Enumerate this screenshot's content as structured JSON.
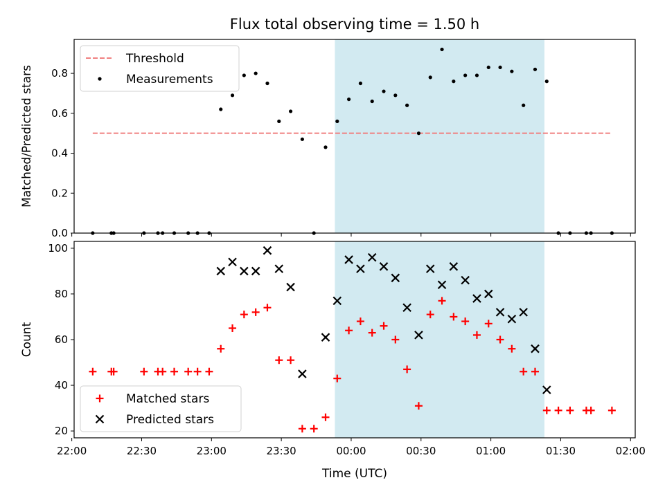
{
  "chart_data": {
    "title": "Flux total observing time = 1.50 h",
    "xlabel": "Time (UTC)",
    "x_ticks": [
      "22:00",
      "22:30",
      "23:00",
      "23:30",
      "00:00",
      "00:30",
      "01:00",
      "01:30",
      "02:00"
    ],
    "shaded_region": {
      "start": "23:53",
      "end": "01:23",
      "color": "#add8e6"
    },
    "panels": [
      {
        "type": "scatter",
        "ylabel": "Matched/Predicted stars",
        "ylim": [
          0,
          0.97
        ],
        "y_ticks": [
          "0.0",
          "0.2",
          "0.4",
          "0.6",
          "0.8"
        ],
        "legend_position": "upper-left",
        "threshold": {
          "name": "Threshold",
          "value": 0.5,
          "x_range": [
            "22:09",
            "01:52"
          ],
          "color": "#f08080"
        },
        "series": [
          {
            "name": "Measurements",
            "color": "#000000",
            "marker": "dot",
            "points": [
              [
                "22:09",
                0.0
              ],
              [
                "22:17",
                0.0
              ],
              [
                "22:18",
                0.0
              ],
              [
                "22:31",
                0.0
              ],
              [
                "22:37",
                0.0
              ],
              [
                "22:39",
                0.0
              ],
              [
                "22:44",
                0.0
              ],
              [
                "22:50",
                0.0
              ],
              [
                "22:54",
                0.0
              ],
              [
                "22:59",
                0.0
              ],
              [
                "23:04",
                0.62
              ],
              [
                "23:09",
                0.69
              ],
              [
                "23:14",
                0.79
              ],
              [
                "23:19",
                0.8
              ],
              [
                "23:24",
                0.75
              ],
              [
                "23:29",
                0.56
              ],
              [
                "23:34",
                0.61
              ],
              [
                "23:39",
                0.47
              ],
              [
                "23:44",
                0.0
              ],
              [
                "23:49",
                0.43
              ],
              [
                "23:54",
                0.56
              ],
              [
                "23:59",
                0.67
              ],
              [
                "00:04",
                0.75
              ],
              [
                "00:09",
                0.66
              ],
              [
                "00:14",
                0.71
              ],
              [
                "00:19",
                0.69
              ],
              [
                "00:24",
                0.64
              ],
              [
                "00:29",
                0.5
              ],
              [
                "00:34",
                0.78
              ],
              [
                "00:39",
                0.92
              ],
              [
                "00:44",
                0.76
              ],
              [
                "00:49",
                0.79
              ],
              [
                "00:54",
                0.79
              ],
              [
                "00:59",
                0.83
              ],
              [
                "01:04",
                0.83
              ],
              [
                "01:09",
                0.81
              ],
              [
                "01:14",
                0.64
              ],
              [
                "01:19",
                0.82
              ],
              [
                "01:24",
                0.76
              ],
              [
                "01:29",
                0.0
              ],
              [
                "01:34",
                0.0
              ],
              [
                "01:41",
                0.0
              ],
              [
                "01:43",
                0.0
              ],
              [
                "01:52",
                0.0
              ]
            ]
          }
        ]
      },
      {
        "type": "scatter",
        "ylabel": "Count",
        "ylim": [
          17,
          103
        ],
        "y_ticks": [
          "20",
          "40",
          "60",
          "80",
          "100"
        ],
        "legend_position": "lower-left",
        "series": [
          {
            "name": "Matched stars",
            "color": "#ff0000",
            "marker": "plus",
            "points": [
              [
                "22:09",
                46
              ],
              [
                "22:17",
                46
              ],
              [
                "22:18",
                46
              ],
              [
                "22:31",
                46
              ],
              [
                "22:37",
                46
              ],
              [
                "22:39",
                46
              ],
              [
                "22:44",
                46
              ],
              [
                "22:50",
                46
              ],
              [
                "22:54",
                46
              ],
              [
                "22:59",
                46
              ],
              [
                "23:04",
                56
              ],
              [
                "23:09",
                65
              ],
              [
                "23:14",
                71
              ],
              [
                "23:19",
                72
              ],
              [
                "23:24",
                74
              ],
              [
                "23:29",
                51
              ],
              [
                "23:34",
                51
              ],
              [
                "23:39",
                21
              ],
              [
                "23:44",
                21
              ],
              [
                "23:49",
                26
              ],
              [
                "23:54",
                43
              ],
              [
                "23:59",
                64
              ],
              [
                "00:04",
                68
              ],
              [
                "00:09",
                63
              ],
              [
                "00:14",
                66
              ],
              [
                "00:19",
                60
              ],
              [
                "00:24",
                47
              ],
              [
                "00:29",
                31
              ],
              [
                "00:34",
                71
              ],
              [
                "00:39",
                77
              ],
              [
                "00:44",
                70
              ],
              [
                "00:49",
                68
              ],
              [
                "00:54",
                62
              ],
              [
                "00:59",
                67
              ],
              [
                "01:04",
                60
              ],
              [
                "01:09",
                56
              ],
              [
                "01:14",
                46
              ],
              [
                "01:19",
                46
              ],
              [
                "01:24",
                29
              ],
              [
                "01:29",
                29
              ],
              [
                "01:34",
                29
              ],
              [
                "01:41",
                29
              ],
              [
                "01:43",
                29
              ],
              [
                "01:52",
                29
              ]
            ]
          },
          {
            "name": "Predicted stars",
            "color": "#000000",
            "marker": "x",
            "points": [
              [
                "23:04",
                90
              ],
              [
                "23:09",
                94
              ],
              [
                "23:14",
                90
              ],
              [
                "23:19",
                90
              ],
              [
                "23:24",
                99
              ],
              [
                "23:29",
                91
              ],
              [
                "23:34",
                83
              ],
              [
                "23:39",
                45
              ],
              [
                "23:49",
                61
              ],
              [
                "23:54",
                77
              ],
              [
                "23:59",
                95
              ],
              [
                "00:04",
                91
              ],
              [
                "00:09",
                96
              ],
              [
                "00:14",
                92
              ],
              [
                "00:19",
                87
              ],
              [
                "00:24",
                74
              ],
              [
                "00:29",
                62
              ],
              [
                "00:34",
                91
              ],
              [
                "00:39",
                84
              ],
              [
                "00:44",
                92
              ],
              [
                "00:49",
                86
              ],
              [
                "00:54",
                78
              ],
              [
                "00:59",
                80
              ],
              [
                "01:04",
                72
              ],
              [
                "01:09",
                69
              ],
              [
                "01:14",
                72
              ],
              [
                "01:19",
                56
              ],
              [
                "01:24",
                38
              ]
            ]
          }
        ]
      }
    ]
  }
}
